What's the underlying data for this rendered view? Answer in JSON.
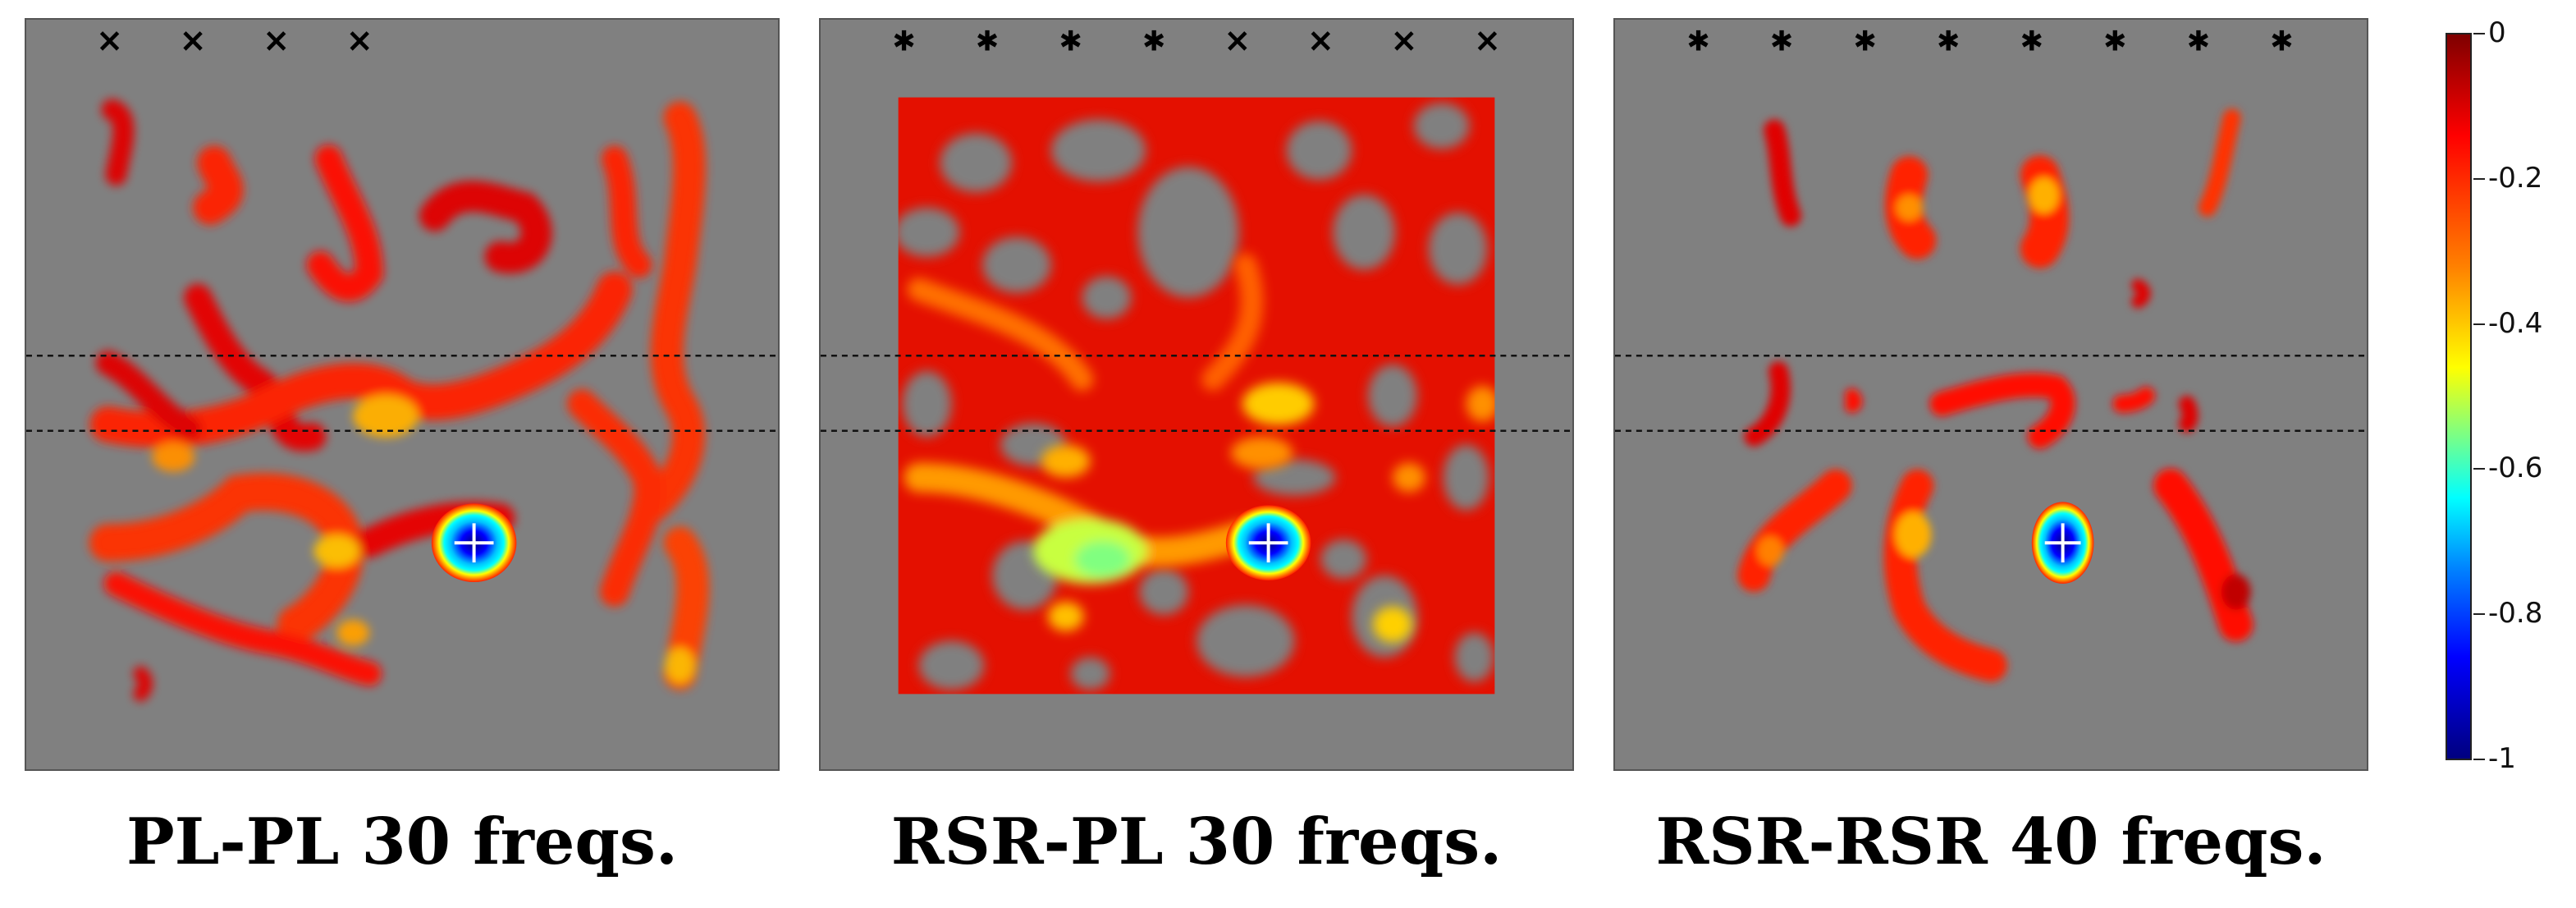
{
  "chart_data": {
    "type": "heatmap",
    "colormap": "jet",
    "color_range": [
      -1,
      0
    ],
    "colorbar_ticks": [
      "0",
      "-0.2",
      "-0.4",
      "-0.6",
      "-0.8",
      "-1"
    ],
    "background_color": "#808080",
    "panels": [
      {
        "title": "PL-PL 30 freqs.",
        "markers": [
          "×",
          "×",
          "×",
          "×"
        ]
      },
      {
        "title": "RSR-PL 30 freqs.",
        "markers": [
          "✱",
          "✱",
          "✱",
          "✱",
          "×",
          "×",
          "×",
          "×"
        ]
      },
      {
        "title": "RSR-RSR 40 freqs.",
        "markers": [
          "✱",
          "✱",
          "✱",
          "✱",
          "✱",
          "✱",
          "✱",
          "✱"
        ]
      }
    ]
  }
}
